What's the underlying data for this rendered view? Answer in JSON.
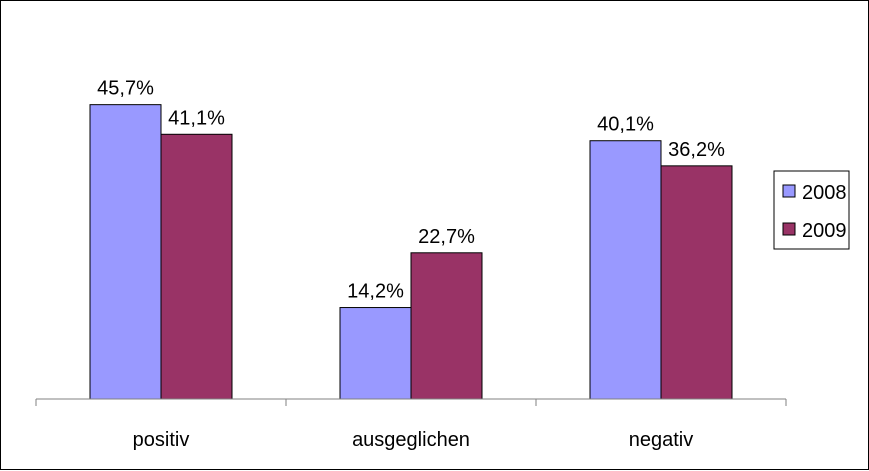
{
  "chart_data": {
    "type": "bar",
    "categories": [
      "positiv",
      "ausgeglichen",
      "negativ"
    ],
    "series": [
      {
        "name": "2008",
        "values": [
          45.7,
          14.2,
          40.1
        ],
        "labels": [
          "45,7%",
          "14,2%",
          "40,1%"
        ],
        "color": "#9999ff"
      },
      {
        "name": "2009",
        "values": [
          41.1,
          22.7,
          36.2
        ],
        "labels": [
          "41,1%",
          "22,7%",
          "36,2%"
        ],
        "color": "#993366"
      }
    ],
    "title": "",
    "xlabel": "",
    "ylabel": "",
    "ylim": [
      0,
      50
    ],
    "grid": false,
    "y_axis_visible": false,
    "legend": {
      "position": "right",
      "entries": [
        "2008",
        "2009"
      ]
    }
  }
}
